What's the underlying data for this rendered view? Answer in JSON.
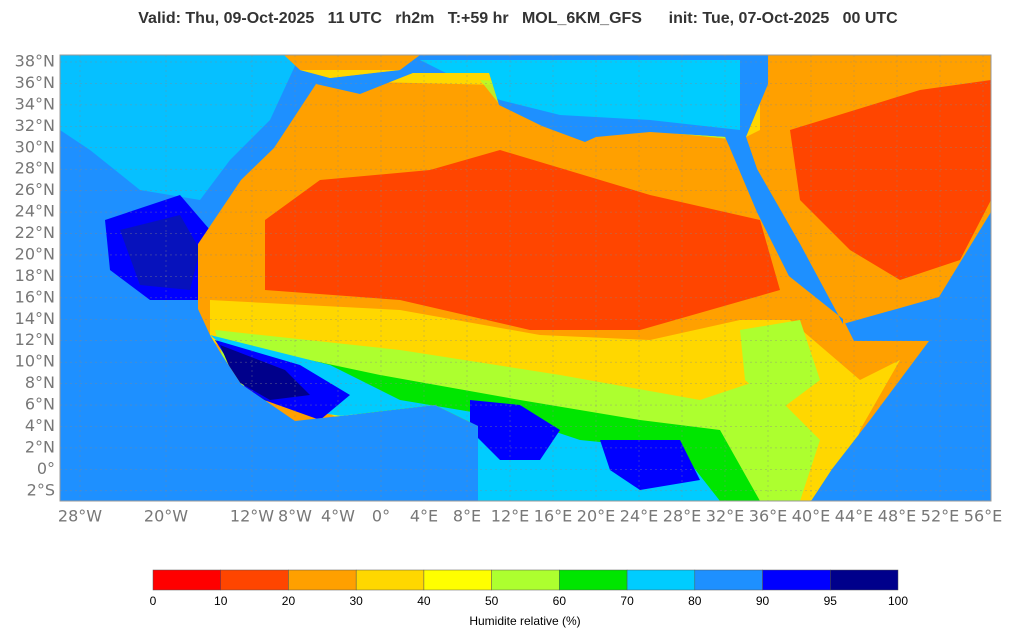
{
  "title": "Valid: Thu, 09-Oct-2025   11 UTC   rh2m   T:+59 hr   MOL_6KM_GFS      init: Tue, 07-Oct-2025   00 UTC",
  "lat_labels": [
    "38°N",
    "36°N",
    "34°N",
    "32°N",
    "30°N",
    "28°N",
    "26°N",
    "24°N",
    "22°N",
    "20°N",
    "18°N",
    "16°N",
    "14°N",
    "12°N",
    "10°N",
    "8°N",
    "6°N",
    "4°N",
    "2°N",
    "0°",
    "2°S"
  ],
  "lon_labels": [
    "28°W",
    "20°W",
    "12°W",
    "8°W",
    "4°W",
    "0°",
    "4°E",
    "8°E",
    "12°E",
    "16°E",
    "20°E",
    "24°E",
    "28°E",
    "32°E",
    "36°E",
    "40°E",
    "44°E",
    "48°E",
    "52°E",
    "56°E"
  ],
  "colorbar": {
    "label": "Humidite relative (%)",
    "ticks": [
      0,
      10,
      20,
      30,
      40,
      50,
      60,
      70,
      80,
      90,
      95,
      100
    ],
    "colors": [
      "#ff0000",
      "#ff4500",
      "#ffa000",
      "#ffd700",
      "#ffff00",
      "#adff2f",
      "#00e600",
      "#00ccff",
      "#1e90ff",
      "#0000ff",
      "#00008b"
    ]
  }
}
